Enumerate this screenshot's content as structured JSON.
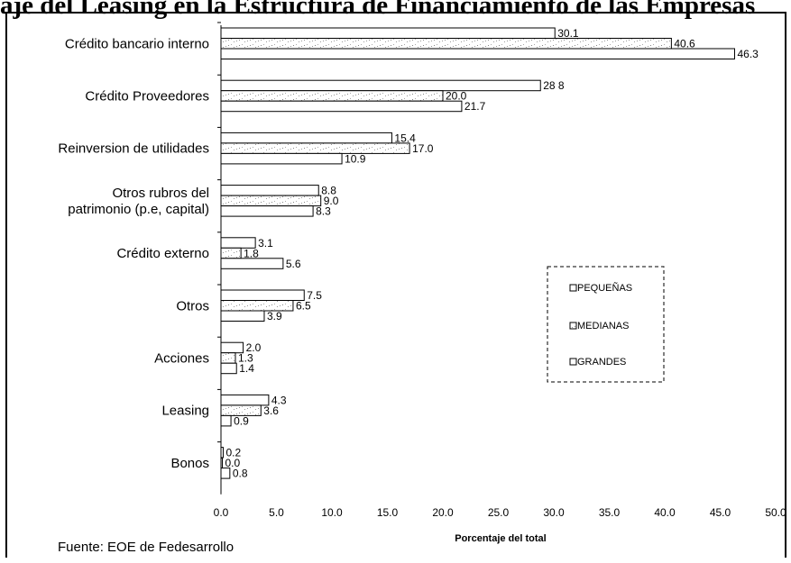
{
  "title": "aje del Leasing en la Estructura de Financiamiento de las Empresas",
  "source": "Fuente: EOE de Fedesarrollo",
  "chart_data": {
    "type": "bar",
    "orientation": "horizontal",
    "categories": [
      "Crédito bancario interno",
      "Crédito Proveedores",
      "Reinversion de utilidades",
      "Otros rubros del patrimonio (p.e, capital)",
      "Crédito externo",
      "Otros",
      "Acciones",
      "Leasing",
      "Bonos"
    ],
    "category_lines": [
      [
        "Crédito bancario interno"
      ],
      [
        "Crédito Proveedores"
      ],
      [
        "Reinversion de utilidades"
      ],
      [
        "Otros rubros del",
        "patrimonio (p.e, capital)"
      ],
      [
        "Crédito externo"
      ],
      [
        "Otros"
      ],
      [
        "Acciones"
      ],
      [
        "Leasing"
      ],
      [
        "Bonos"
      ]
    ],
    "series": [
      {
        "name": "PEQUEÑAS",
        "values": [
          30.1,
          28.8,
          15.4,
          8.8,
          3.1,
          7.5,
          2.0,
          4.3,
          0.2
        ],
        "labels": [
          "30.1",
          "28 8",
          "15.4",
          "8.8",
          "3.1",
          "7.5",
          "2.0",
          "4.3",
          "0.2"
        ]
      },
      {
        "name": "MEDIANAS",
        "values": [
          40.6,
          20.0,
          17.0,
          9.0,
          1.8,
          6.5,
          1.3,
          3.6,
          0.0
        ],
        "labels": [
          "40.6",
          "20.0",
          "17.0",
          "9.0",
          "1.8",
          "6.5",
          "1.3",
          "3.6",
          "0.0"
        ]
      },
      {
        "name": "GRANDES",
        "values": [
          46.3,
          21.7,
          10.9,
          8.3,
          5.6,
          3.9,
          1.4,
          0.9,
          0.8
        ],
        "labels": [
          "46.3",
          "21.7",
          "10.9",
          "8.3",
          "5.6",
          "3.9",
          "1.4",
          "0.9",
          "0.8"
        ]
      }
    ],
    "xlabel": "Porcentaje del total",
    "xlim": [
      0,
      50
    ],
    "xticks": [
      "0.0",
      "5.0",
      "10.0",
      "15.0",
      "20.0",
      "25.0",
      "30.0",
      "35.0",
      "40.0",
      "45.0",
      "50.0"
    ],
    "legend_position": "center-right",
    "grid": false
  }
}
